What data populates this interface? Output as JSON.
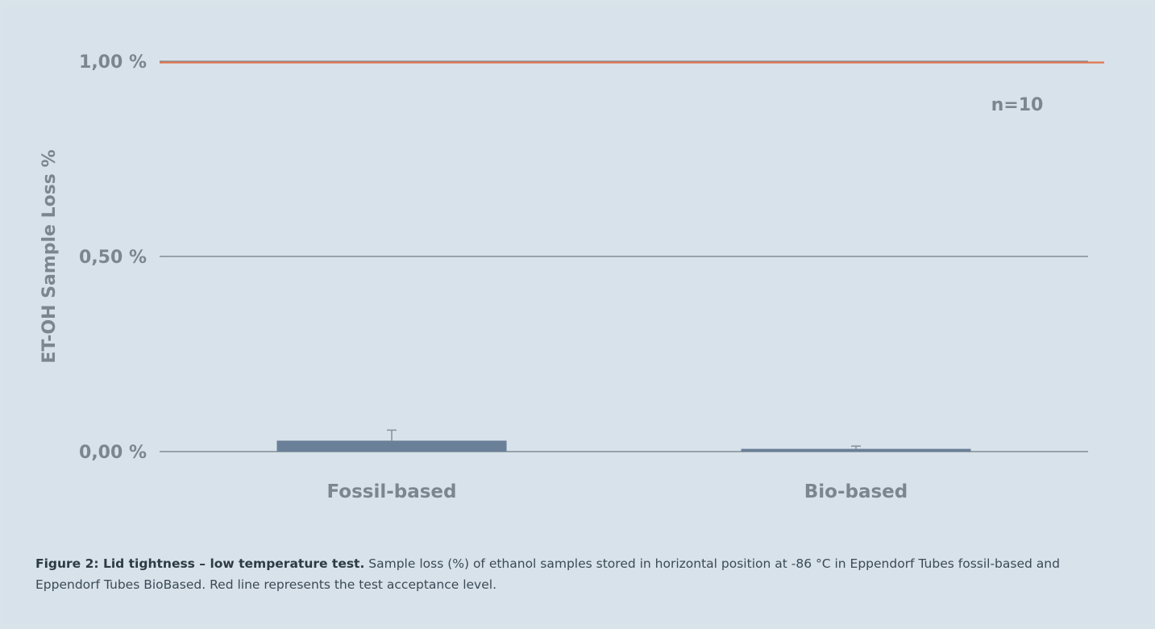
{
  "chart_data": {
    "type": "bar",
    "ylabel": "ET-OH Sample Loss %",
    "categories": [
      "Fossil-based",
      "Bio-based"
    ],
    "values": [
      0.028,
      0.007
    ],
    "error_bars": [
      0.027,
      0.007
    ],
    "yticks": [
      0.0,
      0.5,
      1.0
    ],
    "ytick_labels": [
      "0,00 %",
      "0,50 %",
      "1,00 %"
    ],
    "ylim": [
      0,
      1.0
    ],
    "reference_line": {
      "value": 1.0,
      "color": "#e0764f"
    },
    "annotation": "n=10",
    "grid": true,
    "colors": {
      "bar": "#6a7f98",
      "grid": "#7f8c95",
      "tick_text": "#7b868e",
      "axis_label": "#7b868e"
    }
  },
  "caption": {
    "title": "Figure 2: Lid tightness – low temperature test.",
    "text": " Sample loss (%) of ethanol samples stored in horizontal position at -86 °C in Eppendorf Tubes fossil-based and Eppendorf Tubes BioBased. Red line represents the test acceptance level."
  }
}
